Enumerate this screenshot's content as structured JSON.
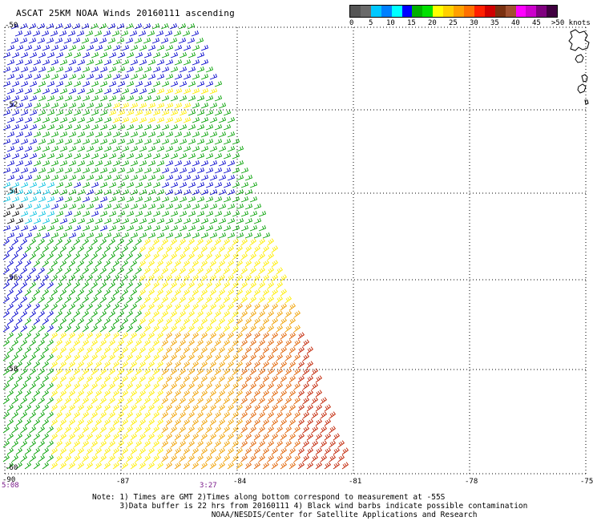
{
  "title": "ASCAT 25KM NOAA Winds 20160111 ascending",
  "legend": {
    "colors": [
      "#555555",
      "#6a6a6a",
      "#00c8ff",
      "#0080ff",
      "#00ffff",
      "#0000ff",
      "#00b000",
      "#00e000",
      "#ffff00",
      "#ffd000",
      "#ffa000",
      "#ff7000",
      "#ff2000",
      "#d00000",
      "#7a3010",
      "#a05030",
      "#ff00ff",
      "#cc00cc",
      "#800080",
      "#400040"
    ],
    "labels": [
      "0",
      "5",
      "10",
      "15",
      "20",
      "25",
      "30",
      "35",
      "40",
      "45",
      ">50 knots"
    ]
  },
  "lat_labels": [
    "-50",
    "-52",
    "-54",
    "-56",
    "-58",
    "-60"
  ],
  "lon_labels": [
    "-90",
    "-87",
    "-84",
    "-81",
    "-78",
    "-75"
  ],
  "time_labels": [
    "5:08",
    "3:27"
  ],
  "note_lines": [
    "Note: 1) Times are GMT 2)Times along bottom correspond to measurement at -55S",
    "      3)Data buffer is 22 hrs from 20160111 4) Black wind barbs indicate possible contamination",
    "                          NOAA/NESDIS/Center for Satellite Applications and Research"
  ],
  "speed_colors": {
    "c5": "#000000",
    "c10": "#00c0e0",
    "c15": "#0000cc",
    "c20": "#00a000",
    "c25": "#ffee00",
    "c30": "#f0a000",
    "c35": "#e06000",
    "c40": "#c02000"
  }
}
